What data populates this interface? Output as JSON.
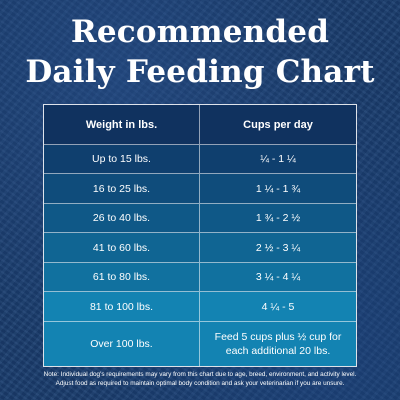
{
  "title": {
    "line1": "Recommended",
    "line2": "Daily Feeding Chart"
  },
  "table": {
    "headers": [
      "Weight in lbs.",
      "Cups per day"
    ],
    "rows": [
      {
        "weight": "Up to 15 lbs.",
        "cups": "¼  - 1 ¼"
      },
      {
        "weight": "16 to 25 lbs.",
        "cups": "1 ¼ - 1 ¾"
      },
      {
        "weight": "26 to 40 lbs.",
        "cups": "1 ¾  - 2 ½"
      },
      {
        "weight": "41 to 60 lbs.",
        "cups": "2 ½ - 3 ¼"
      },
      {
        "weight": "61 to 80 lbs.",
        "cups": "3 ¼ - 4 ¼"
      },
      {
        "weight": "81 to 100 lbs.",
        "cups": "4 ¼  - 5"
      },
      {
        "weight": "Over 100 lbs.",
        "cups": "Feed 5 cups plus ½ cup for each additional 20 lbs."
      }
    ],
    "row_colors": [
      "#10325f",
      "#0f3f6e",
      "#0f4c7b",
      "#0f5887",
      "#106593",
      "#11719f",
      "#1383b2"
    ]
  },
  "note": {
    "line1": "Note: Individual dog's requirements may vary from this chart due to age, breed, environment, and activity level.",
    "line2": "Adjust food as required to maintain optimal body condition and ask your veterinarian if you are unsure."
  }
}
